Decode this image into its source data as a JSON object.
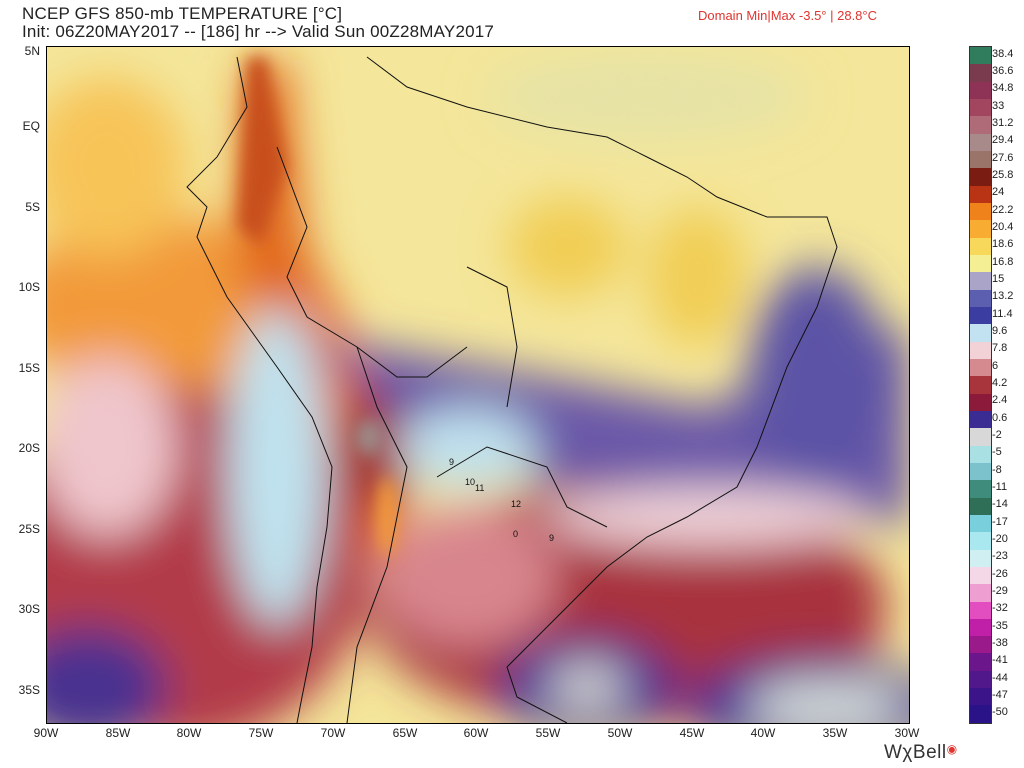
{
  "header": {
    "title": "NCEP GFS 850-mb TEMPERATURE [°C]",
    "subtitle": "Init: 06Z20MAY2017 -- [186] hr --> Valid Sun 00Z28MAY2017",
    "domain_minmax": "Domain Min|Max -3.5° | 28.8°C",
    "domain_color": "#e0342f"
  },
  "map": {
    "lat_labels": [
      "5N",
      "EQ",
      "5S",
      "10S",
      "15S",
      "20S",
      "25S",
      "30S",
      "35S"
    ],
    "lon_labels": [
      "90W",
      "85W",
      "80W",
      "75W",
      "70W",
      "65W",
      "60W",
      "55W",
      "50W",
      "45W",
      "40W",
      "35W",
      "30W"
    ],
    "annotations": [
      "9",
      "10",
      "11",
      "12",
      "0",
      "9"
    ]
  },
  "colorbar": {
    "labels": [
      "38.4",
      "36.6",
      "34.8",
      "33",
      "31.2",
      "29.4",
      "27.6",
      "25.8",
      "24",
      "22.2",
      "20.4",
      "18.6",
      "16.8",
      "15",
      "13.2",
      "11.4",
      "9.6",
      "7.8",
      "6",
      "4.2",
      "2.4",
      "0.6",
      "-2",
      "-5",
      "-8",
      "-11",
      "-14",
      "-17",
      "-20",
      "-23",
      "-26",
      "-29",
      "-32",
      "-35",
      "-38",
      "-41",
      "-44",
      "-47",
      "-50"
    ],
    "colors": [
      "#2f7d5c",
      "#7a3b4f",
      "#8e3355",
      "#a2455f",
      "#b06b78",
      "#a88a8a",
      "#9a7468",
      "#7a1c12",
      "#b83414",
      "#f0821c",
      "#f8ac32",
      "#f8d85a",
      "#f4ee94",
      "#aaa4c8",
      "#5c5eb0",
      "#3b3ea0",
      "#c2e2f2",
      "#f2d2d6",
      "#d48a8e",
      "#a8343c",
      "#8c1a3a",
      "#3a2c92",
      "#d8d8d8",
      "#a8e0e4",
      "#7cc2cc",
      "#3f8c7c",
      "#2f6f58",
      "#79d0dc",
      "#a8e8ee",
      "#cfeff2",
      "#f4d8e8",
      "#ee9ed0",
      "#e24ec0",
      "#c020a8",
      "#9a1a8c",
      "#6c168c",
      "#50188a",
      "#3c148a",
      "#2a1288"
    ],
    "accent": "#e0342f"
  },
  "footer": {
    "logo_main": "WχBell"
  }
}
